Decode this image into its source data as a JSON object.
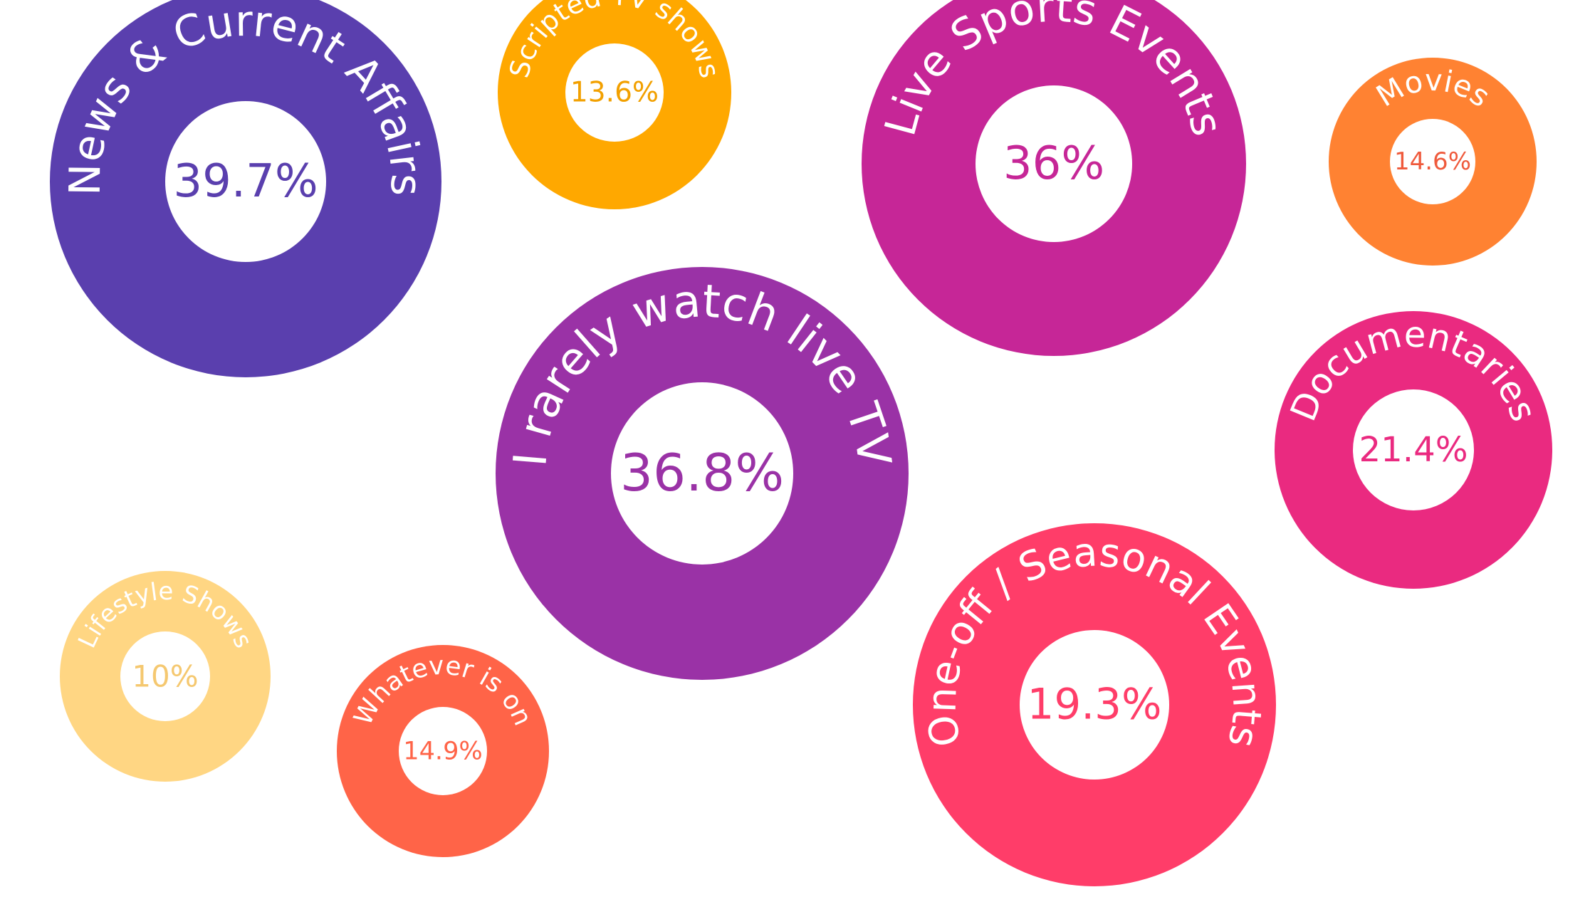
{
  "chart_data": {
    "type": "bubble",
    "title": "",
    "unit": "%",
    "series": [
      {
        "category": "News & Current Affairs",
        "value": 39.7,
        "value_label": "39.7%",
        "color": "#5a3fae",
        "text_color": "#5a3fae"
      },
      {
        "category": "Scripted TV shows",
        "value": 13.6,
        "value_label": "13.6%",
        "color": "#ffa800",
        "text_color": "#f2a000"
      },
      {
        "category": "Live Sports Events",
        "value": 36,
        "value_label": "36%",
        "color": "#c62697",
        "text_color": "#c62697"
      },
      {
        "category": "Movies",
        "value": 14.6,
        "value_label": "14.6%",
        "color": "#ff8232",
        "text_color": "#ef5a3c"
      },
      {
        "category": "I rarely  watch live TV",
        "value": 36.8,
        "value_label": "36.8%",
        "color": "#9a32a6",
        "text_color": "#9a32a6"
      },
      {
        "category": "Documentaries",
        "value": 21.4,
        "value_label": "21.4%",
        "color": "#ea2a80",
        "text_color": "#ea2a80"
      },
      {
        "category": "Lifestyle Shows",
        "value": 10,
        "value_label": "10%",
        "color": "#ffd683",
        "text_color": "#f5c870"
      },
      {
        "category": "Whatever is on",
        "value": 14.9,
        "value_label": "14.9%",
        "color": "#ff6448",
        "text_color": "#ff6448"
      },
      {
        "category": "One-off / Seasonal Events",
        "value": 19.3,
        "value_label": "19.3%",
        "color": "#ff3d69",
        "text_color": "#ff3d69"
      }
    ]
  }
}
